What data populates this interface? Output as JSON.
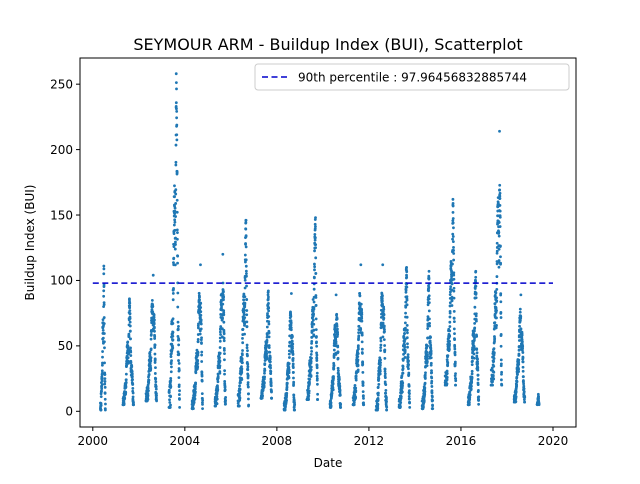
{
  "chart_data": {
    "type": "scatter",
    "title": "SEYMOUR ARM - Buildup Index (BUI), Scatterplot",
    "xlabel": "Date",
    "ylabel": "Buildup Index (BUI)",
    "xlim": [
      "1999-06-12",
      "2021-01-01"
    ],
    "ylim": [
      -12,
      270
    ],
    "x_ticks": [
      "2000",
      "2004",
      "2008",
      "2012",
      "2016",
      "2020"
    ],
    "y_ticks": [
      0,
      50,
      100,
      150,
      200,
      250
    ],
    "legend": {
      "placement": "top-right",
      "label": "90th percentile : 97.96456832885744"
    },
    "reference_line": {
      "y": 97.96456832885744,
      "x_start": "2000-01-01",
      "x_end": "2020-01-01",
      "style": "dashed",
      "color": "#0000cc"
    },
    "point_color": "#1f77b4",
    "fire_seasons": [
      {
        "year": 2000,
        "start": "2000-05-01",
        "end": "2000-07-20",
        "low": 1,
        "peak": 111
      },
      {
        "year": 2001,
        "start": "2001-04-25",
        "end": "2001-10-10",
        "low": 5,
        "peak": 86
      },
      {
        "year": 2002,
        "start": "2002-04-25",
        "end": "2002-10-10",
        "low": 8,
        "peak": 104
      },
      {
        "year": 2003,
        "start": "2003-04-25",
        "end": "2003-10-10",
        "low": 3,
        "peak": 258
      },
      {
        "year": 2004,
        "start": "2004-04-25",
        "end": "2004-10-10",
        "low": 2,
        "peak": 112
      },
      {
        "year": 2005,
        "start": "2005-04-25",
        "end": "2005-10-10",
        "low": 4,
        "peak": 120
      },
      {
        "year": 2006,
        "start": "2006-04-25",
        "end": "2006-10-10",
        "low": 4,
        "peak": 146
      },
      {
        "year": 2007,
        "start": "2007-04-25",
        "end": "2007-10-10",
        "low": 10,
        "peak": 92
      },
      {
        "year": 2008,
        "start": "2008-04-25",
        "end": "2008-10-10",
        "low": 1,
        "peak": 90
      },
      {
        "year": 2009,
        "start": "2009-04-25",
        "end": "2009-10-10",
        "low": 9,
        "peak": 148
      },
      {
        "year": 2010,
        "start": "2010-04-25",
        "end": "2010-10-10",
        "low": 3,
        "peak": 89
      },
      {
        "year": 2011,
        "start": "2011-04-25",
        "end": "2011-10-10",
        "low": 5,
        "peak": 112
      },
      {
        "year": 2012,
        "start": "2012-04-25",
        "end": "2012-10-10",
        "low": 1,
        "peak": 112
      },
      {
        "year": 2013,
        "start": "2013-04-25",
        "end": "2013-10-10",
        "low": 3,
        "peak": 110
      },
      {
        "year": 2014,
        "start": "2014-04-25",
        "end": "2014-10-10",
        "low": 2,
        "peak": 107
      },
      {
        "year": 2015,
        "start": "2015-04-25",
        "end": "2015-10-10",
        "low": 20,
        "peak": 162
      },
      {
        "year": 2016,
        "start": "2016-04-25",
        "end": "2016-10-10",
        "low": 5,
        "peak": 107
      },
      {
        "year": 2017,
        "start": "2017-04-25",
        "end": "2017-10-10",
        "low": 20,
        "peak": 214
      },
      {
        "year": 2018,
        "start": "2018-04-25",
        "end": "2018-10-10",
        "low": 7,
        "peak": 89
      },
      {
        "year": 2019,
        "start": "2019-04-25",
        "end": "2019-05-25",
        "low": 5,
        "peak": 13
      }
    ]
  }
}
